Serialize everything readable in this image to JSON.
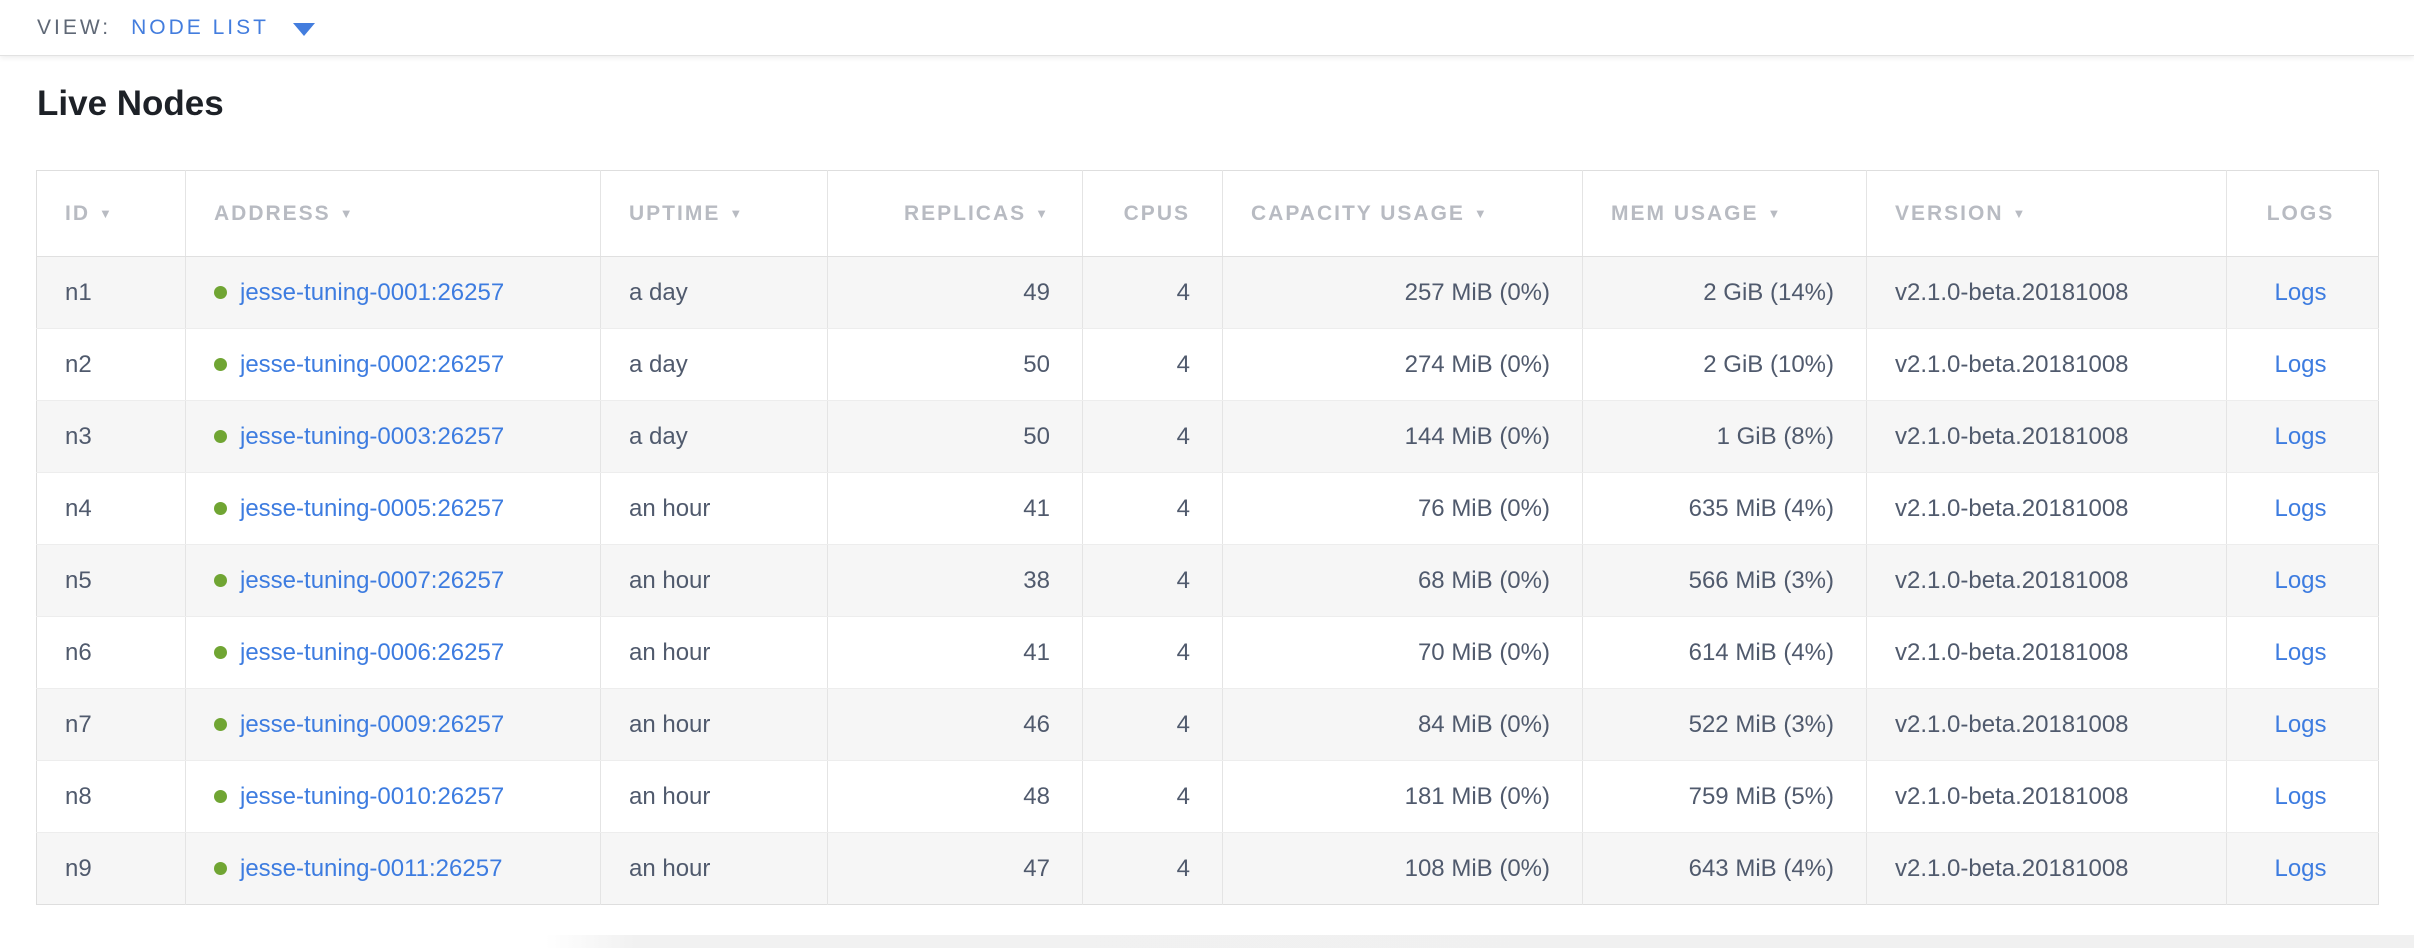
{
  "view_bar": {
    "label": "VIEW:",
    "selected": "NODE LIST"
  },
  "page": {
    "title": "Live Nodes"
  },
  "colors": {
    "link_blue": "#3d7ce0",
    "healthy_green": "#70a533",
    "header_gray": "#b8bbc2",
    "cell_text": "#505a6d"
  },
  "table": {
    "sort_icon": "▼",
    "columns": [
      {
        "key": "id",
        "label": "ID",
        "sortable": true
      },
      {
        "key": "address",
        "label": "ADDRESS",
        "sortable": true
      },
      {
        "key": "uptime",
        "label": "UPTIME",
        "sortable": true
      },
      {
        "key": "replicas",
        "label": "REPLICAS",
        "sortable": true
      },
      {
        "key": "cpus",
        "label": "CPUS",
        "sortable": false
      },
      {
        "key": "capacity",
        "label": "CAPACITY USAGE",
        "sortable": true
      },
      {
        "key": "mem",
        "label": "MEM USAGE",
        "sortable": true
      },
      {
        "key": "version",
        "label": "VERSION",
        "sortable": true
      },
      {
        "key": "logs",
        "label": "LOGS",
        "sortable": false
      }
    ],
    "rows": [
      {
        "id": "n1",
        "address": "jesse-tuning-0001:26257",
        "uptime": "a day",
        "replicas": "49",
        "cpus": "4",
        "capacity": "257 MiB (0%)",
        "mem": "2 GiB (14%)",
        "version": "v2.1.0-beta.20181008",
        "logs": "Logs"
      },
      {
        "id": "n2",
        "address": "jesse-tuning-0002:26257",
        "uptime": "a day",
        "replicas": "50",
        "cpus": "4",
        "capacity": "274 MiB (0%)",
        "mem": "2 GiB (10%)",
        "version": "v2.1.0-beta.20181008",
        "logs": "Logs"
      },
      {
        "id": "n3",
        "address": "jesse-tuning-0003:26257",
        "uptime": "a day",
        "replicas": "50",
        "cpus": "4",
        "capacity": "144 MiB (0%)",
        "mem": "1 GiB (8%)",
        "version": "v2.1.0-beta.20181008",
        "logs": "Logs"
      },
      {
        "id": "n4",
        "address": "jesse-tuning-0005:26257",
        "uptime": "an hour",
        "replicas": "41",
        "cpus": "4",
        "capacity": "76 MiB (0%)",
        "mem": "635 MiB (4%)",
        "version": "v2.1.0-beta.20181008",
        "logs": "Logs"
      },
      {
        "id": "n5",
        "address": "jesse-tuning-0007:26257",
        "uptime": "an hour",
        "replicas": "38",
        "cpus": "4",
        "capacity": "68 MiB (0%)",
        "mem": "566 MiB (3%)",
        "version": "v2.1.0-beta.20181008",
        "logs": "Logs"
      },
      {
        "id": "n6",
        "address": "jesse-tuning-0006:26257",
        "uptime": "an hour",
        "replicas": "41",
        "cpus": "4",
        "capacity": "70 MiB (0%)",
        "mem": "614 MiB (4%)",
        "version": "v2.1.0-beta.20181008",
        "logs": "Logs"
      },
      {
        "id": "n7",
        "address": "jesse-tuning-0009:26257",
        "uptime": "an hour",
        "replicas": "46",
        "cpus": "4",
        "capacity": "84 MiB (0%)",
        "mem": "522 MiB (3%)",
        "version": "v2.1.0-beta.20181008",
        "logs": "Logs"
      },
      {
        "id": "n8",
        "address": "jesse-tuning-0010:26257",
        "uptime": "an hour",
        "replicas": "48",
        "cpus": "4",
        "capacity": "181 MiB (0%)",
        "mem": "759 MiB (5%)",
        "version": "v2.1.0-beta.20181008",
        "logs": "Logs"
      },
      {
        "id": "n9",
        "address": "jesse-tuning-0011:26257",
        "uptime": "an hour",
        "replicas": "47",
        "cpus": "4",
        "capacity": "108 MiB (0%)",
        "mem": "643 MiB (4%)",
        "version": "v2.1.0-beta.20181008",
        "logs": "Logs"
      }
    ]
  }
}
